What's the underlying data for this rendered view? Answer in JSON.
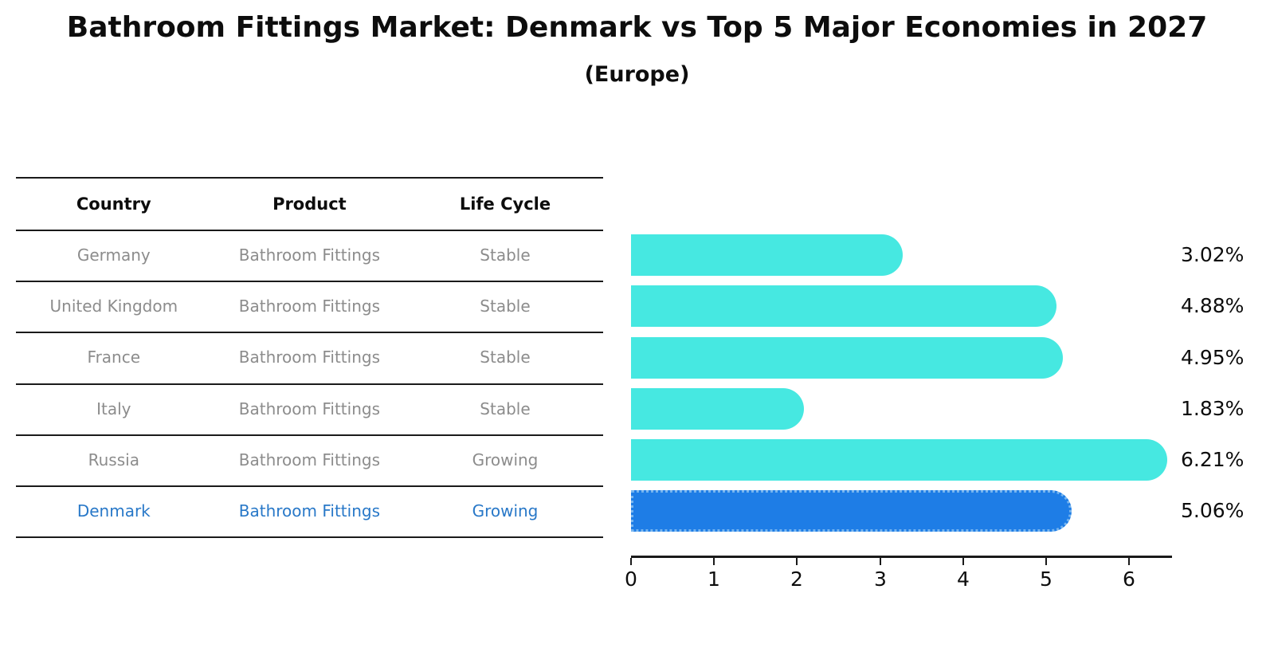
{
  "title": "Bathroom Fittings Market: Denmark vs Top 5 Major Economies in 2027",
  "subtitle": "(Europe)",
  "table": {
    "headers": [
      "Country",
      "Product",
      "Life Cycle"
    ],
    "rows": [
      {
        "country": "Germany",
        "product": "Bathroom Fittings",
        "life_cycle": "Stable",
        "highlight": false
      },
      {
        "country": "United Kingdom",
        "product": "Bathroom Fittings",
        "life_cycle": "Stable",
        "highlight": false
      },
      {
        "country": "France",
        "product": "Bathroom Fittings",
        "life_cycle": "Stable",
        "highlight": false
      },
      {
        "country": "Italy",
        "product": "Bathroom Fittings",
        "life_cycle": "Stable",
        "highlight": false
      },
      {
        "country": "Russia",
        "product": "Bathroom Fittings",
        "life_cycle": "Growing",
        "highlight": false
      },
      {
        "country": "Denmark",
        "product": "Bathroom Fittings",
        "life_cycle": "Growing",
        "highlight": true
      }
    ]
  },
  "chart_data": {
    "type": "bar",
    "orientation": "horizontal",
    "title": "Bathroom Fittings Market: Denmark vs Top 5 Major Economies in 2027",
    "subtitle": "(Europe)",
    "categories": [
      "Germany",
      "United Kingdom",
      "France",
      "Italy",
      "Russia",
      "Denmark"
    ],
    "values": [
      3.02,
      4.88,
      4.95,
      1.83,
      6.21,
      5.06
    ],
    "value_labels": [
      "3.02%",
      "4.88%",
      "4.95%",
      "1.83%",
      "6.21%",
      "5.06%"
    ],
    "x_ticks": [
      0,
      1,
      2,
      3,
      4,
      5,
      6
    ],
    "xlim": [
      0,
      6.52
    ],
    "grid": false,
    "bar_color": "#46E8E1",
    "highlight_color": "#1E7DE6",
    "highlight_border_color": "#77B5EF",
    "highlight_index": 5,
    "highlight_text_color": "#2878C8",
    "xlabel": "",
    "ylabel": ""
  }
}
